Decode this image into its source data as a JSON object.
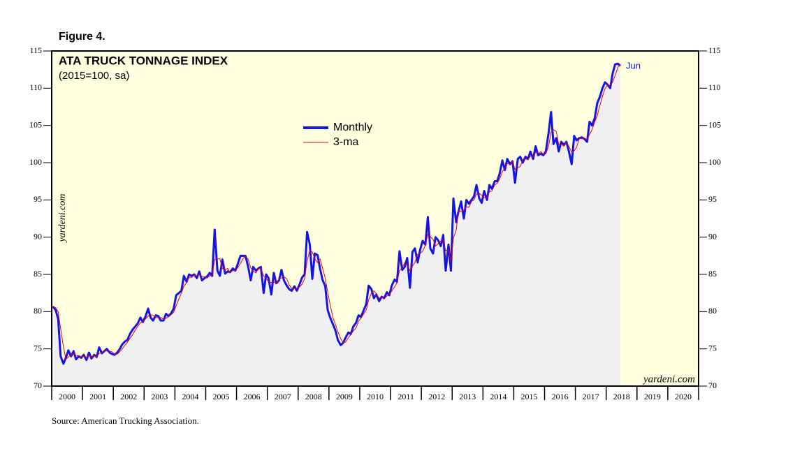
{
  "chart_data": {
    "type": "line",
    "figure_label": "Figure 4.",
    "title": "ATA TRUCK TONNAGE INDEX",
    "subtitle": "(2015=100, sa)",
    "annotation": "Jun",
    "watermark": "yardeni.com",
    "source": "Source: American Trucking Association.",
    "xlim": [
      2000,
      2021
    ],
    "xticks": [
      2000,
      2001,
      2002,
      2003,
      2004,
      2005,
      2006,
      2007,
      2008,
      2009,
      2010,
      2011,
      2012,
      2013,
      2014,
      2015,
      2016,
      2017,
      2018,
      2019,
      2020
    ],
    "ylim": [
      70,
      115
    ],
    "yticks": [
      70,
      75,
      80,
      85,
      90,
      95,
      100,
      105,
      110,
      115
    ],
    "x": [
      2000.04,
      2000.13,
      2000.21,
      2000.29,
      2000.38,
      2000.46,
      2000.54,
      2000.63,
      2000.71,
      2000.79,
      2000.88,
      2000.96,
      2001.04,
      2001.13,
      2001.21,
      2001.29,
      2001.38,
      2001.46,
      2001.54,
      2001.63,
      2001.71,
      2001.79,
      2001.88,
      2001.96,
      2002.04,
      2002.13,
      2002.21,
      2002.29,
      2002.38,
      2002.46,
      2002.54,
      2002.63,
      2002.71,
      2002.79,
      2002.88,
      2002.96,
      2003.04,
      2003.13,
      2003.21,
      2003.29,
      2003.38,
      2003.46,
      2003.54,
      2003.63,
      2003.71,
      2003.79,
      2003.88,
      2003.96,
      2004.04,
      2004.13,
      2004.21,
      2004.29,
      2004.38,
      2004.46,
      2004.54,
      2004.63,
      2004.71,
      2004.79,
      2004.88,
      2004.96,
      2005.04,
      2005.13,
      2005.21,
      2005.29,
      2005.38,
      2005.46,
      2005.54,
      2005.63,
      2005.71,
      2005.79,
      2005.88,
      2005.96,
      2006.04,
      2006.13,
      2006.21,
      2006.29,
      2006.38,
      2006.46,
      2006.54,
      2006.63,
      2006.71,
      2006.79,
      2006.88,
      2006.96,
      2007.04,
      2007.13,
      2007.21,
      2007.29,
      2007.38,
      2007.46,
      2007.54,
      2007.63,
      2007.71,
      2007.79,
      2007.88,
      2007.96,
      2008.04,
      2008.13,
      2008.21,
      2008.29,
      2008.38,
      2008.46,
      2008.54,
      2008.63,
      2008.71,
      2008.79,
      2008.88,
      2008.96,
      2009.04,
      2009.13,
      2009.21,
      2009.29,
      2009.38,
      2009.46,
      2009.54,
      2009.63,
      2009.71,
      2009.79,
      2009.88,
      2009.96,
      2010.04,
      2010.13,
      2010.21,
      2010.29,
      2010.38,
      2010.46,
      2010.54,
      2010.63,
      2010.71,
      2010.79,
      2010.88,
      2010.96,
      2011.04,
      2011.13,
      2011.21,
      2011.29,
      2011.38,
      2011.46,
      2011.54,
      2011.63,
      2011.71,
      2011.79,
      2011.88,
      2011.96,
      2012.04,
      2012.13,
      2012.21,
      2012.29,
      2012.38,
      2012.46,
      2012.54,
      2012.63,
      2012.71,
      2012.79,
      2012.88,
      2012.96,
      2013.04,
      2013.13,
      2013.21,
      2013.29,
      2013.38,
      2013.46,
      2013.54,
      2013.63,
      2013.71,
      2013.79,
      2013.88,
      2013.96,
      2014.04,
      2014.13,
      2014.21,
      2014.29,
      2014.38,
      2014.46,
      2014.54,
      2014.63,
      2014.71,
      2014.79,
      2014.88,
      2014.96,
      2015.04,
      2015.13,
      2015.21,
      2015.29,
      2015.38,
      2015.46,
      2015.54,
      2015.63,
      2015.71,
      2015.79,
      2015.88,
      2015.96,
      2016.04,
      2016.13,
      2016.21,
      2016.29,
      2016.38,
      2016.46,
      2016.54,
      2016.63,
      2016.71,
      2016.79,
      2016.88,
      2016.96,
      2017.04,
      2017.13,
      2017.21,
      2017.29,
      2017.38,
      2017.46,
      2017.54,
      2017.63,
      2017.71,
      2017.79,
      2017.88,
      2017.96,
      2018.04,
      2018.13,
      2018.21,
      2018.29,
      2018.38,
      2018.46
    ],
    "series": [
      {
        "name": "Monthly",
        "color": "#1414e6",
        "values": [
          80.7,
          80.2,
          79,
          74,
          73,
          73.8,
          74.8,
          74,
          74.7,
          73.6,
          74,
          73.8,
          74.2,
          73.5,
          74.5,
          73.7,
          74.2,
          73.9,
          75.2,
          74.4,
          74.7,
          75,
          74.5,
          74.3,
          74.2,
          74.5,
          75,
          75.6,
          76,
          76.2,
          77,
          77.6,
          78,
          78.4,
          79.2,
          78.6,
          79.3,
          80.4,
          79.2,
          78.8,
          79.5,
          79.4,
          78.8,
          78.8,
          79.7,
          79.4,
          79.8,
          80.4,
          82.2,
          82.5,
          82.8,
          84.8,
          84,
          85,
          84.8,
          85,
          84.5,
          85.4,
          84.2,
          84.5,
          84.7,
          85.2,
          84.8,
          91,
          85.5,
          84.8,
          87,
          85.1,
          85.4,
          85.3,
          85.8,
          85.5,
          86.4,
          87.5,
          87.5,
          87.5,
          86,
          84.2,
          86,
          85.5,
          85.8,
          86,
          82.5,
          85,
          84.5,
          82.3,
          85.2,
          83.8,
          84.2,
          85.6,
          84.2,
          83.5,
          83,
          82.8,
          83.4,
          82.8,
          83.6,
          84.6,
          85,
          90.7,
          89,
          84.4,
          87.8,
          87.6,
          85.8,
          84.3,
          83.4,
          80.2,
          79.2,
          78.3,
          77.5,
          76.2,
          75.5,
          75.8,
          76.5,
          77.2,
          77,
          78,
          78.5,
          79.5,
          79.3,
          80.2,
          81,
          83.5,
          83,
          81.8,
          82.3,
          81.4,
          82,
          81.8,
          82.6,
          82.2,
          83.5,
          84.3,
          84,
          88.1,
          85.6,
          86,
          87.2,
          83.2,
          88,
          88.5,
          86.6,
          88.3,
          89.5,
          89,
          92.7,
          88.5,
          87.8,
          90,
          89.6,
          88.8,
          90.3,
          85.5,
          89,
          85.5,
          95.2,
          92,
          93.5,
          94.8,
          92.5,
          95,
          94.5,
          95,
          95.5,
          97,
          95.2,
          94.6,
          96.2,
          95,
          97,
          96.5,
          97.5,
          97.5,
          98.5,
          100.3,
          99,
          100.5,
          99.8,
          100.2,
          97.3,
          100.5,
          100.8,
          100,
          100.8,
          100.5,
          101.5,
          100.5,
          102.2,
          101,
          101.2,
          101,
          101.5,
          104,
          106.8,
          102.5,
          103.3,
          101.5,
          102.8,
          102.4,
          102.8,
          101.5,
          99.8,
          103.6,
          103,
          103.3,
          103.4,
          103.2,
          102.8,
          105.5,
          105,
          106,
          108,
          108.8,
          110,
          110.8,
          110.5,
          110,
          112,
          113.2,
          113.3,
          113
        ]
      },
      {
        "name": "3-ma",
        "color": "#e60000",
        "values": [
          80.7,
          80.5,
          80.0,
          77.7,
          75.3,
          73.6,
          73.9,
          74.2,
          74.5,
          74.1,
          74.1,
          73.8,
          74.0,
          73.8,
          74.1,
          73.9,
          74.1,
          73.9,
          74.4,
          74.5,
          74.8,
          74.7,
          74.7,
          74.6,
          74.3,
          74.3,
          74.6,
          75.0,
          75.5,
          75.9,
          76.4,
          76.9,
          77.5,
          78.0,
          78.5,
          78.7,
          79.0,
          79.4,
          79.6,
          79.5,
          79.2,
          79.2,
          79.2,
          79.0,
          79.1,
          79.3,
          79.6,
          79.9,
          80.8,
          81.7,
          82.5,
          83.4,
          83.9,
          84.6,
          84.6,
          84.9,
          84.8,
          85.0,
          84.7,
          84.7,
          84.5,
          84.8,
          84.9,
          87.0,
          87.1,
          87.1,
          85.8,
          85.6,
          85.8,
          85.3,
          85.5,
          85.5,
          85.9,
          86.5,
          87.1,
          87.5,
          87.0,
          85.9,
          85.4,
          85.2,
          85.8,
          85.8,
          84.8,
          84.5,
          84.0,
          83.9,
          84.0,
          83.8,
          84.4,
          84.5,
          84.7,
          84.4,
          83.6,
          83.1,
          83.1,
          83.0,
          83.3,
          83.7,
          84.4,
          86.8,
          88.2,
          88.0,
          87.1,
          86.6,
          87.1,
          85.9,
          84.5,
          82.6,
          80.9,
          79.2,
          78.3,
          77.3,
          76.4,
          75.8,
          75.9,
          76.5,
          76.9,
          77.4,
          77.8,
          78.7,
          79.1,
          79.7,
          80.2,
          81.6,
          82.5,
          82.8,
          82.4,
          81.8,
          81.9,
          81.7,
          82.1,
          82.2,
          82.8,
          83.3,
          83.9,
          85.5,
          85.9,
          86.6,
          86.3,
          85.5,
          86.1,
          86.6,
          87.7,
          87.8,
          88.1,
          88.9,
          90.4,
          90.1,
          89.7,
          88.8,
          89.1,
          89.5,
          89.6,
          88.2,
          88.3,
          86.7,
          89.9,
          90.9,
          93.6,
          93.4,
          93.6,
          94.1,
          94.0,
          94.8,
          95.0,
          95.8,
          95.9,
          95.6,
          95.3,
          95.3,
          96.1,
          96.2,
          97.0,
          97.2,
          97.8,
          98.8,
          99.3,
          99.9,
          99.8,
          100.2,
          99.1,
          99.3,
          99.5,
          100.4,
          100.5,
          100.4,
          100.9,
          100.8,
          101.4,
          101.2,
          101.5,
          101.1,
          101.2,
          102.2,
          104.1,
          104.4,
          104.2,
          102.4,
          102.5,
          102.2,
          102.7,
          102.2,
          101.4,
          101.6,
          102.1,
          103.3,
          103.2,
          103.3,
          103.1,
          103.8,
          104.4,
          105.5,
          106.3,
          107.6,
          108.9,
          109.9,
          110.4,
          110.4,
          110.8,
          111.7,
          112.8,
          113.2
        ]
      }
    ]
  }
}
